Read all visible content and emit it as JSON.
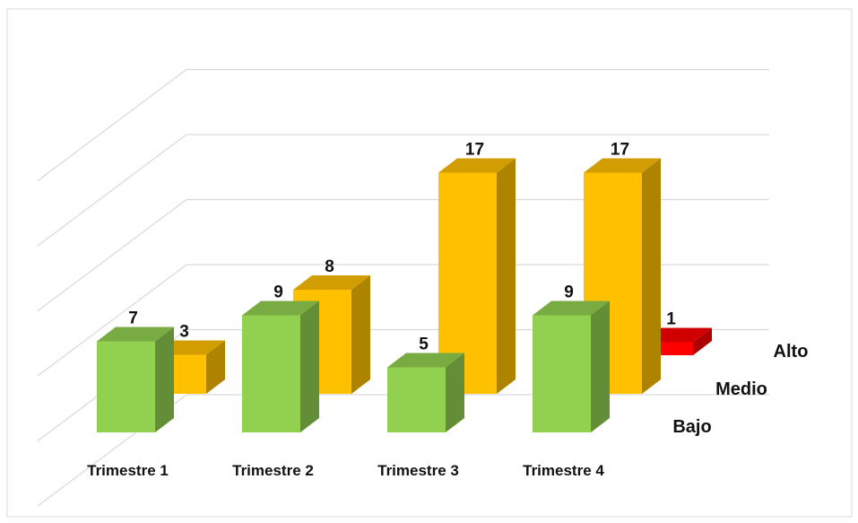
{
  "chart_data": {
    "type": "bar",
    "title": "",
    "xlabel": "",
    "ylabel": "",
    "categories": [
      "Trimestre 1",
      "Trimestre 2",
      "Trimestre 3",
      "Trimestre 4"
    ],
    "series": [
      {
        "name": "Bajo",
        "values": [
          7,
          9,
          5,
          9
        ],
        "color": "#92d050"
      },
      {
        "name": "Medio",
        "values": [
          3,
          8,
          17,
          17
        ],
        "color": "#ffc000"
      },
      {
        "name": "Alto",
        "values": [
          null,
          null,
          null,
          1
        ],
        "color": "#ff0000"
      }
    ],
    "ylim": [
      0,
      25
    ],
    "grid": true,
    "legend": "none"
  }
}
